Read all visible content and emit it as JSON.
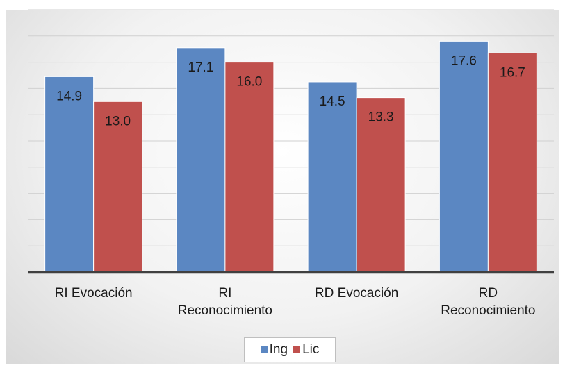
{
  "chart_data": {
    "type": "bar",
    "categories": [
      "RI Evocación",
      "RI Reconocimiento",
      "RD Evocación",
      "RD Reconocimiento"
    ],
    "category_lines": [
      [
        "RI Evocación"
      ],
      [
        "RI",
        "Reconocimiento"
      ],
      [
        "RD Evocación"
      ],
      [
        "RD",
        "Reconocimiento"
      ]
    ],
    "series": [
      {
        "name": "Ing",
        "values": [
          14.9,
          17.1,
          14.5,
          17.6
        ],
        "labels": [
          "14.9",
          "17.1",
          "14.5",
          "17.6"
        ],
        "color": "#5b87c2"
      },
      {
        "name": "Lic",
        "values": [
          13.0,
          16.0,
          13.3,
          16.7
        ],
        "labels": [
          "13.0",
          "16.0",
          "13.3",
          "16.7"
        ],
        "color": "#c0504d"
      }
    ],
    "ylim": [
      0,
      20
    ],
    "grid": true,
    "legend_position": "bottom",
    "data_labels": "inside-top",
    "y_tick_labels": false
  }
}
